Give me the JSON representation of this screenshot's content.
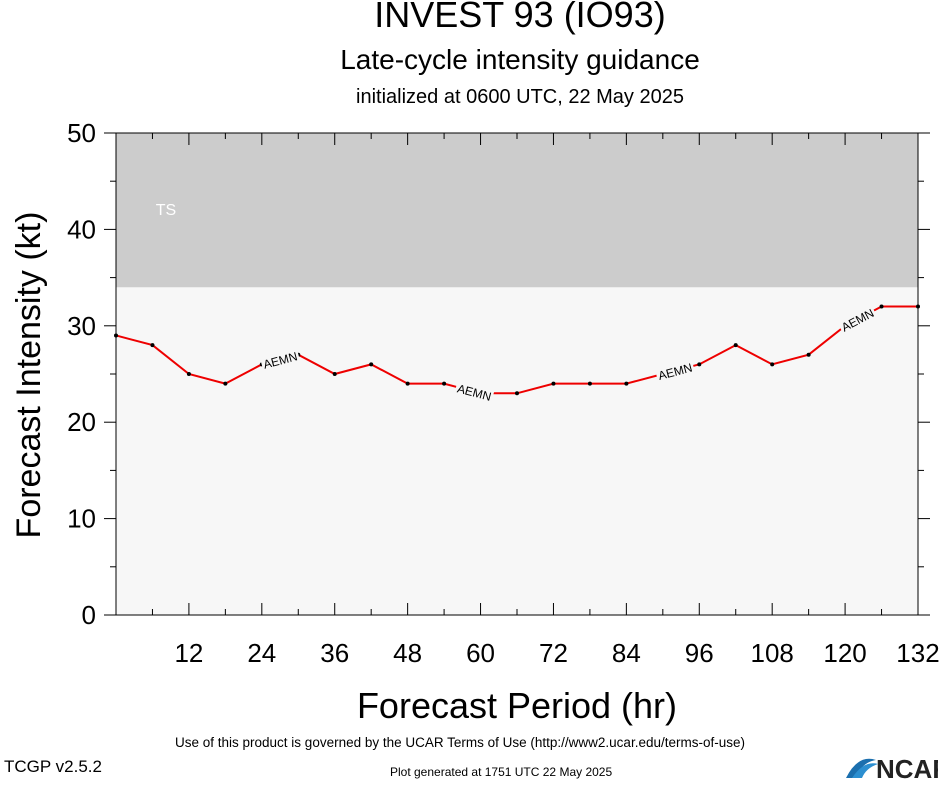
{
  "header": {
    "title": "INVEST 93 (IO93)",
    "subtitle": "Late-cycle intensity guidance",
    "init": "initialized at 0600 UTC, 22 May 2025"
  },
  "chart_data": {
    "type": "line",
    "xlabel": "Forecast Period (hr)",
    "ylabel": "Forecast Intensity (kt)",
    "xlim": [
      0,
      132
    ],
    "ylim": [
      0,
      50
    ],
    "xticks": [
      12,
      24,
      36,
      48,
      60,
      72,
      84,
      96,
      108,
      120,
      132
    ],
    "yticks": [
      0,
      10,
      20,
      30,
      40,
      50
    ],
    "band": {
      "label": "TS",
      "ymin": 34,
      "ymax": 50,
      "color": "#cccccc"
    },
    "background_color": "#f7f7f7",
    "series": [
      {
        "name": "AEMN",
        "color": "#ee0000",
        "x": [
          0,
          6,
          12,
          18,
          24,
          30,
          36,
          42,
          48,
          54,
          60,
          66,
          72,
          78,
          84,
          90,
          96,
          102,
          108,
          114,
          120,
          126,
          132
        ],
        "y": [
          29,
          28,
          25,
          24,
          26,
          27,
          25,
          26,
          24,
          24,
          23,
          23,
          24,
          24,
          24,
          25,
          26,
          28,
          26,
          27,
          30,
          32,
          32
        ],
        "label_at_x": [
          27,
          59,
          92,
          122
        ]
      }
    ]
  },
  "footer": {
    "terms": "Use of this product is governed by the UCAR Terms of Use (http://www2.ucar.edu/terms-of-use)",
    "version": "TCGP v2.5.2",
    "generated": "Plot generated at 1751 UTC   22 May 2025",
    "logo_text": "NCAR"
  }
}
